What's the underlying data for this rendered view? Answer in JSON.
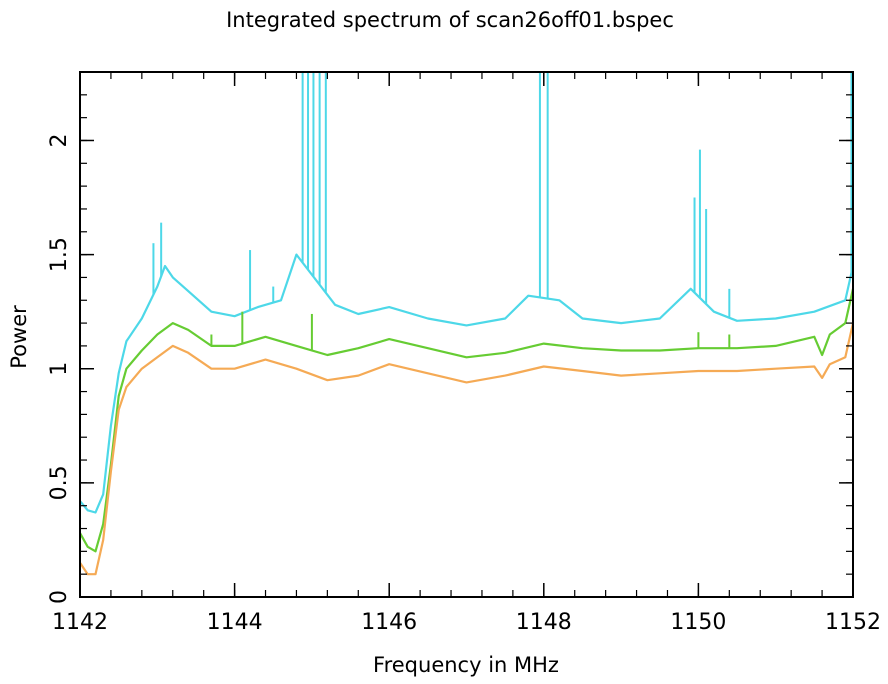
{
  "chart_data": {
    "type": "line",
    "title": "Integrated spectrum of scan26off01.bspec",
    "xlabel": "Frequency in MHz",
    "ylabel": "Power",
    "xlim": [
      1142,
      1152
    ],
    "ylim": [
      0,
      2.3
    ],
    "x_ticks": [
      1142,
      1144,
      1146,
      1148,
      1150,
      1152
    ],
    "x_tick_labels": [
      "1142",
      "1144",
      "1146",
      "1148",
      "1150",
      "1152"
    ],
    "y_ticks": [
      0,
      0.5,
      1,
      1.5,
      2
    ],
    "y_tick_labels": [
      "0",
      "0.5",
      "1",
      "1.5",
      "2"
    ],
    "grid": false,
    "legend": "none",
    "series": [
      {
        "color": "#4dd8e8",
        "x": [
          1142.0,
          1142.1,
          1142.2,
          1142.3,
          1142.4,
          1142.5,
          1142.6,
          1142.8,
          1143.0,
          1143.1,
          1143.2,
          1143.4,
          1143.7,
          1144.0,
          1144.3,
          1144.6,
          1144.8,
          1145.3,
          1145.6,
          1146.0,
          1146.5,
          1147.0,
          1147.5,
          1147.8,
          1148.2,
          1148.5,
          1149.0,
          1149.5,
          1149.9,
          1150.2,
          1150.5,
          1151.0,
          1151.5,
          1151.9,
          1152.0
        ],
        "y": [
          0.42,
          0.38,
          0.37,
          0.45,
          0.75,
          0.98,
          1.12,
          1.22,
          1.36,
          1.45,
          1.4,
          1.34,
          1.25,
          1.23,
          1.27,
          1.3,
          1.5,
          1.28,
          1.24,
          1.27,
          1.22,
          1.19,
          1.22,
          1.32,
          1.3,
          1.22,
          1.2,
          1.22,
          1.35,
          1.25,
          1.21,
          1.22,
          1.25,
          1.3,
          1.45
        ],
        "spikes": [
          {
            "x": 1142.95,
            "y": 1.55
          },
          {
            "x": 1143.05,
            "y": 1.64
          },
          {
            "x": 1144.2,
            "y": 1.52
          },
          {
            "x": 1144.5,
            "y": 1.36
          },
          {
            "x": 1144.88,
            "y": 2.3
          },
          {
            "x": 1144.95,
            "y": 2.3
          },
          {
            "x": 1145.02,
            "y": 2.3
          },
          {
            "x": 1145.1,
            "y": 2.3
          },
          {
            "x": 1145.18,
            "y": 2.3
          },
          {
            "x": 1147.95,
            "y": 2.3
          },
          {
            "x": 1148.05,
            "y": 2.3
          },
          {
            "x": 1149.95,
            "y": 1.75
          },
          {
            "x": 1150.02,
            "y": 1.96
          },
          {
            "x": 1150.1,
            "y": 1.7
          },
          {
            "x": 1150.4,
            "y": 1.35
          },
          {
            "x": 1151.98,
            "y": 2.3
          }
        ]
      },
      {
        "color": "#66cc33",
        "x": [
          1142.0,
          1142.1,
          1142.2,
          1142.3,
          1142.4,
          1142.5,
          1142.6,
          1142.8,
          1143.0,
          1143.2,
          1143.4,
          1143.7,
          1144.0,
          1144.4,
          1144.8,
          1145.2,
          1145.6,
          1146.0,
          1146.5,
          1147.0,
          1147.5,
          1148.0,
          1148.5,
          1149.0,
          1149.5,
          1150.0,
          1150.5,
          1151.0,
          1151.5,
          1151.6,
          1151.7,
          1151.9,
          1152.0
        ],
        "y": [
          0.28,
          0.22,
          0.2,
          0.32,
          0.58,
          0.88,
          1.0,
          1.08,
          1.15,
          1.2,
          1.17,
          1.1,
          1.1,
          1.14,
          1.1,
          1.06,
          1.09,
          1.13,
          1.09,
          1.05,
          1.07,
          1.11,
          1.09,
          1.08,
          1.08,
          1.09,
          1.09,
          1.1,
          1.14,
          1.06,
          1.15,
          1.2,
          1.35
        ],
        "spikes": [
          {
            "x": 1143.7,
            "y": 1.15
          },
          {
            "x": 1144.1,
            "y": 1.25
          },
          {
            "x": 1145.0,
            "y": 1.24
          },
          {
            "x": 1150.0,
            "y": 1.16
          },
          {
            "x": 1150.4,
            "y": 1.15
          }
        ]
      },
      {
        "color": "#f5aa55",
        "x": [
          1142.0,
          1142.1,
          1142.2,
          1142.3,
          1142.4,
          1142.5,
          1142.6,
          1142.8,
          1143.0,
          1143.2,
          1143.4,
          1143.7,
          1144.0,
          1144.4,
          1144.8,
          1145.2,
          1145.6,
          1146.0,
          1146.5,
          1147.0,
          1147.5,
          1148.0,
          1148.5,
          1149.0,
          1149.5,
          1150.0,
          1150.5,
          1151.0,
          1151.5,
          1151.6,
          1151.7,
          1151.9,
          1152.0
        ],
        "y": [
          0.15,
          0.1,
          0.1,
          0.25,
          0.55,
          0.82,
          0.92,
          1.0,
          1.05,
          1.1,
          1.07,
          1.0,
          1.0,
          1.04,
          1.0,
          0.95,
          0.97,
          1.02,
          0.98,
          0.94,
          0.97,
          1.01,
          0.99,
          0.97,
          0.98,
          0.99,
          0.99,
          1.0,
          1.01,
          0.96,
          1.02,
          1.05,
          1.2
        ],
        "spikes": []
      }
    ]
  }
}
